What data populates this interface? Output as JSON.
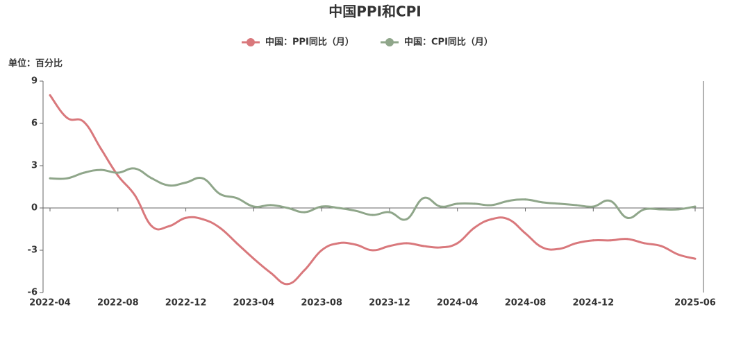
{
  "chart_data": {
    "type": "line",
    "title": "中国PPI和CPI",
    "y_label": "单位：百分比",
    "categories": [
      "2022-04",
      null,
      null,
      null,
      "2022-08",
      null,
      null,
      null,
      "2022-12",
      null,
      null,
      null,
      "2023-04",
      null,
      null,
      null,
      "2023-08",
      null,
      null,
      null,
      "2023-12",
      null,
      null,
      null,
      "2024-04",
      null,
      null,
      null,
      "2024-08",
      null,
      null,
      null,
      "2024-12",
      null,
      null,
      null,
      null,
      null,
      "2025-06"
    ],
    "series": [
      {
        "name": "中国：PPI同比（月）",
        "color": "#d9787c",
        "values": [
          8.0,
          6.4,
          6.1,
          4.2,
          2.3,
          0.9,
          -1.3,
          -1.3,
          -0.7,
          -0.8,
          -1.4,
          -2.5,
          -3.6,
          -4.6,
          -5.4,
          -4.4,
          -3.0,
          -2.5,
          -2.6,
          -3.0,
          -2.7,
          -2.5,
          -2.7,
          -2.8,
          -2.5,
          -1.4,
          -0.8,
          -0.8,
          -1.8,
          -2.8,
          -2.9,
          -2.5,
          -2.3,
          -2.3,
          -2.2,
          -2.5,
          -2.7,
          -3.3,
          -3.6
        ]
      },
      {
        "name": "中国：CPI同比（月）",
        "color": "#8fa68a",
        "values": [
          2.1,
          2.1,
          2.5,
          2.7,
          2.5,
          2.8,
          2.1,
          1.6,
          1.8,
          2.1,
          1.0,
          0.7,
          0.1,
          0.2,
          0.0,
          -0.3,
          0.1,
          0.0,
          -0.2,
          -0.5,
          -0.3,
          -0.8,
          0.7,
          0.1,
          0.3,
          0.3,
          0.2,
          0.5,
          0.6,
          0.4,
          0.3,
          0.2,
          0.1,
          0.5,
          -0.7,
          -0.1,
          -0.1,
          -0.1,
          0.1
        ]
      }
    ],
    "ylim": [
      -6,
      9
    ],
    "yticks": [
      -6,
      -3,
      0,
      3,
      6,
      9
    ],
    "legend": "top"
  }
}
